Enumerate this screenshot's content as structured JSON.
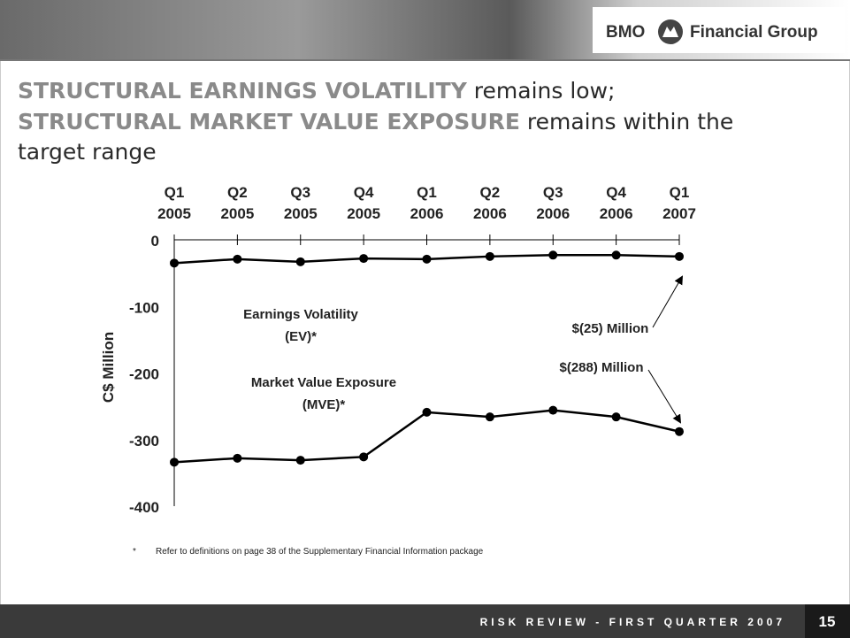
{
  "header": {
    "logo_left": "BMO",
    "logo_right": "Financial Group"
  },
  "title": [
    [
      "STRUCTURAL EARNINGS VOLATILITY",
      " remains low;"
    ],
    [
      "STRUCTURAL MARKET VALUE EXPOSURE",
      " remains within the"
    ],
    [
      "target range"
    ]
  ],
  "chart_data": {
    "type": "line",
    "categories": [
      "Q1 2005",
      "Q2 2005",
      "Q3 2005",
      "Q4 2005",
      "Q1 2006",
      "Q2 2006",
      "Q3 2006",
      "Q4 2006",
      "Q1 2007"
    ],
    "y_label": "C$ Million",
    "ylim": [
      -400,
      0
    ],
    "yticks": [
      0,
      -100,
      -200,
      -300,
      -400
    ],
    "series": [
      {
        "label": [
          "Earnings Volatility",
          "(EV)*"
        ],
        "color": "#000000",
        "values": [
          -35,
          -29,
          -33,
          -28,
          -29,
          -25,
          -23,
          -23,
          -25
        ]
      },
      {
        "label": [
          "Market Value Exposure",
          "(MVE)*"
        ],
        "color": "#000000",
        "values": [
          -334,
          -328,
          -331,
          -326,
          -259,
          -266,
          -256,
          -266,
          -288
        ]
      }
    ],
    "annotations": [
      "$(25) Million",
      "$(288) Million"
    ]
  },
  "footnote": {
    "mark": "*",
    "text": "Refer to definitions on page 38 of the Supplementary Financial Information package"
  },
  "footer": {
    "text": "RISK REVIEW - FIRST QUARTER 2007",
    "page": "15"
  }
}
